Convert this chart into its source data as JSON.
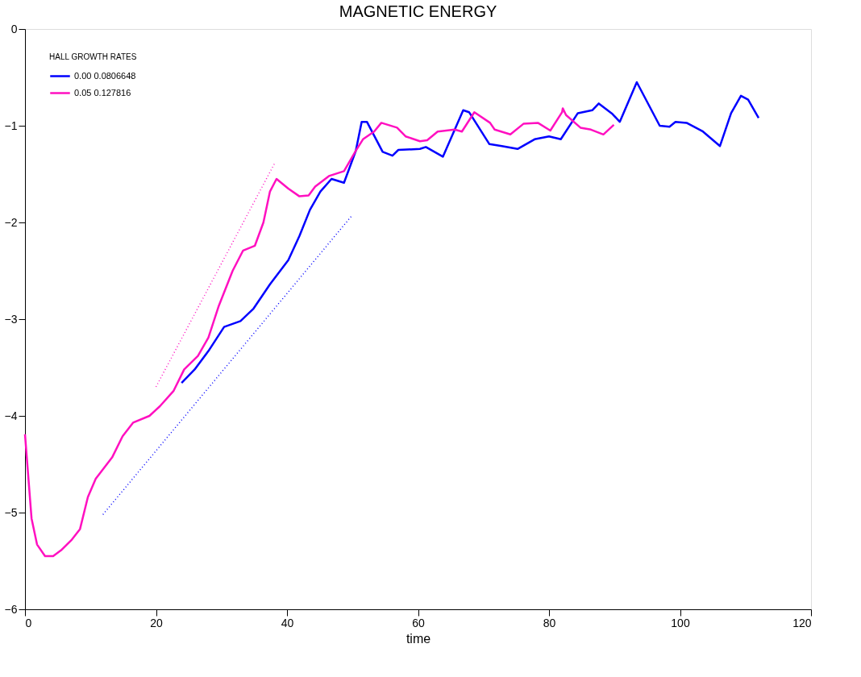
{
  "chart_data": {
    "type": "line",
    "title": "MAGNETIC ENERGY",
    "xlabel": "time",
    "legend_title": "HALL   GROWTH RATES",
    "legend": "top left",
    "grid": false,
    "xlim": [
      0,
      120
    ],
    "xticks": [
      0,
      20,
      40,
      60,
      80,
      100,
      120
    ],
    "ylim": [
      -6,
      0
    ],
    "yticks": [
      -6,
      -5,
      -4,
      -3,
      -2,
      -1,
      0
    ],
    "series": [
      {
        "name": "0.00   0.0806648",
        "color": "#0000ff",
        "line_style": "solid",
        "x": [
          23.9,
          25.9,
          28.0,
          30.4,
          32.9,
          34.9,
          37.4,
          40.2,
          41.9,
          43.5,
          45.1,
          46.8,
          48.7,
          50.5,
          51.4,
          52.2,
          54.6,
          56.1,
          57.0,
          60.3,
          61.2,
          63.8,
          66.9,
          67.8,
          70.9,
          72.8,
          75.2,
          77.8,
          80.0,
          81.8,
          84.4,
          86.6,
          87.6,
          89.7,
          90.8,
          93.4,
          96.9,
          98.4,
          99.3,
          101.0,
          103.5,
          106.1,
          107.8,
          109.3,
          110.4,
          112.0
        ],
        "values": [
          -3.66,
          -3.52,
          -3.33,
          -3.08,
          -3.02,
          -2.89,
          -2.64,
          -2.39,
          -2.14,
          -1.87,
          -1.68,
          -1.55,
          -1.59,
          -1.26,
          -0.96,
          -0.96,
          -1.27,
          -1.31,
          -1.25,
          -1.24,
          -1.22,
          -1.32,
          -0.84,
          -0.86,
          -1.19,
          -1.21,
          -1.24,
          -1.14,
          -1.11,
          -1.14,
          -0.87,
          -0.84,
          -0.77,
          -0.88,
          -0.96,
          -0.55,
          -1.0,
          -1.01,
          -0.96,
          -0.97,
          -1.06,
          -1.21,
          -0.87,
          -0.69,
          -0.73,
          -0.92
        ]
      },
      {
        "name": "0.05   0.127816",
        "color": "#ff10c0",
        "line_style": "solid",
        "x": [
          0,
          1.0,
          1.84,
          3.06,
          4.3,
          5.5,
          7.15,
          8.4,
          9.6,
          10.8,
          13.3,
          14.9,
          16.5,
          19.0,
          20.6,
          22.7,
          24.3,
          26.4,
          28.0,
          29.6,
          31.7,
          33.3,
          35.1,
          36.4,
          37.4,
          38.4,
          40.2,
          41.9,
          43.3,
          44.3,
          46.4,
          48.7,
          50.5,
          51.6,
          53.3,
          54.4,
          56.8,
          58.1,
          60.3,
          61.4,
          63.0,
          65.6,
          66.7,
          68.6,
          71.0,
          71.7,
          74.1,
          76.1,
          78.3,
          80.2,
          82.0,
          82.1,
          82.6,
          84.8,
          86.4,
          88.3,
          89.9
        ],
        "values": [
          -4.19,
          -5.06,
          -5.33,
          -5.45,
          -5.45,
          -5.39,
          -5.28,
          -5.17,
          -4.84,
          -4.65,
          -4.43,
          -4.21,
          -4.07,
          -4.0,
          -3.9,
          -3.74,
          -3.52,
          -3.38,
          -3.19,
          -2.86,
          -2.5,
          -2.29,
          -2.24,
          -2.0,
          -1.68,
          -1.55,
          -1.65,
          -1.73,
          -1.72,
          -1.63,
          -1.52,
          -1.47,
          -1.26,
          -1.14,
          -1.06,
          -0.97,
          -1.02,
          -1.11,
          -1.16,
          -1.15,
          -1.06,
          -1.04,
          -1.06,
          -0.86,
          -0.97,
          -1.04,
          -1.09,
          -0.98,
          -0.97,
          -1.05,
          -0.86,
          -0.82,
          -0.89,
          -1.02,
          -1.04,
          -1.09,
          -0.99
        ]
      },
      {
        "color": "#0000ff",
        "line_style": "dotted",
        "x": [
          11.9,
          49.9
        ],
        "values": [
          -5.02,
          -1.93
        ]
      },
      {
        "color": "#ff10c0",
        "line_style": "dotted",
        "x": [
          20.0,
          38.1
        ],
        "values": [
          -3.7,
          -1.39
        ]
      }
    ]
  }
}
